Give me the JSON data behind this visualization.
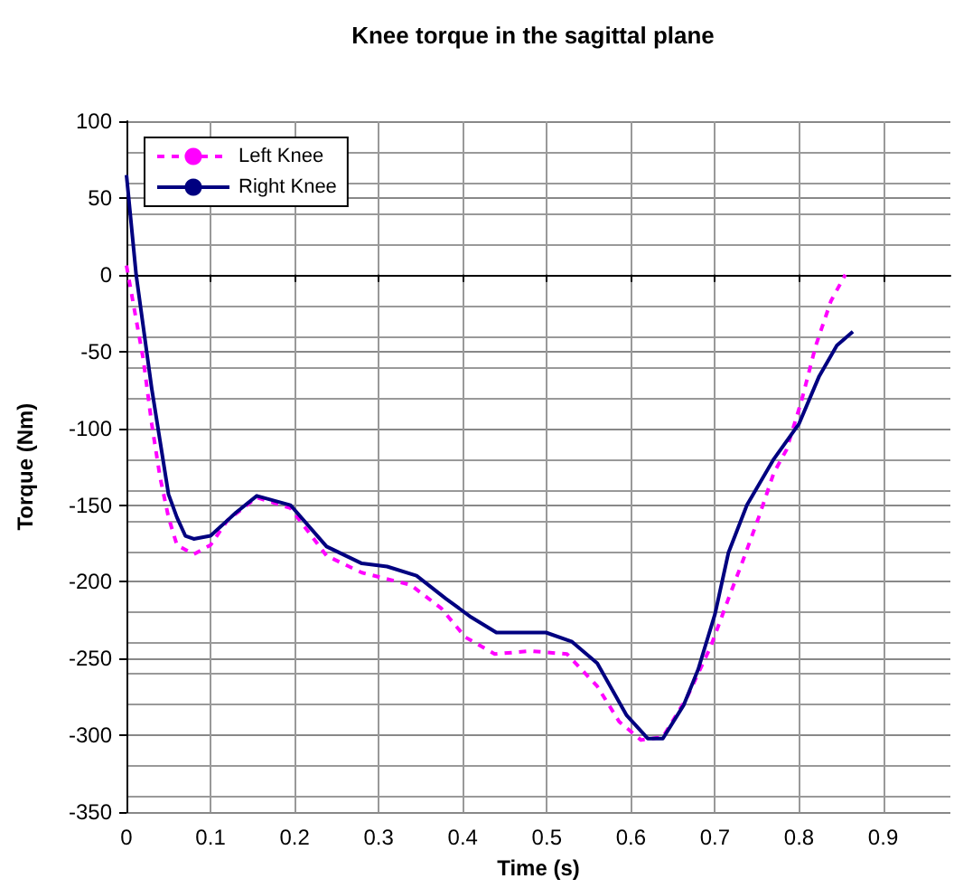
{
  "chart_data": {
    "type": "line",
    "title": "Knee torque in the sagittal plane",
    "xlabel": "Time (s)",
    "ylabel": "Torque (Nm)",
    "xlim": [
      0,
      0.98
    ],
    "xticks": [
      0,
      0.1,
      0.2,
      0.3,
      0.4,
      0.5,
      0.6,
      0.7,
      0.8,
      0.9
    ],
    "ylim": [
      -350,
      100
    ],
    "yticks": [
      -350,
      -300,
      -250,
      -200,
      -150,
      -100,
      -50,
      0,
      50,
      100
    ],
    "grid": true,
    "legend": "top left",
    "marker": "none",
    "series": [
      {
        "name": "Left Knee",
        "color": "#ff00ff",
        "line_style": "dashed",
        "x": [
          0,
          0.02,
          0.03,
          0.04,
          0.05,
          0.06,
          0.08,
          0.1,
          0.12,
          0.155,
          0.195,
          0.238,
          0.28,
          0.338,
          0.374,
          0.403,
          0.438,
          0.48,
          0.524,
          0.56,
          0.586,
          0.612,
          0.638,
          0.666,
          0.695,
          0.716,
          0.734,
          0.752,
          0.77,
          0.785,
          0.803,
          0.82,
          0.838,
          0.855
        ],
        "values": [
          6,
          -55,
          -97,
          -132,
          -158,
          -176,
          -182,
          -176,
          -160,
          -145,
          -152,
          -183,
          -194,
          -202,
          -217,
          -236,
          -247,
          -245,
          -247,
          -268,
          -291,
          -303,
          -301,
          -276,
          -242,
          -211,
          -185,
          -158,
          -129,
          -114,
          -82,
          -46,
          -17,
          0
        ]
      },
      {
        "name": "Right Knee",
        "color": "#000080",
        "line_style": "solid",
        "x": [
          0,
          0.0115,
          0.03,
          0.05,
          0.06,
          0.07,
          0.08,
          0.1,
          0.13,
          0.155,
          0.195,
          0.238,
          0.28,
          0.31,
          0.345,
          0.38,
          0.41,
          0.44,
          0.499,
          0.53,
          0.56,
          0.595,
          0.62,
          0.638,
          0.663,
          0.68,
          0.7,
          0.716,
          0.738,
          0.77,
          0.8,
          0.824,
          0.845,
          0.864
        ],
        "values": [
          65,
          0,
          -74,
          -143,
          -158,
          -170,
          -172,
          -170,
          -155,
          -144,
          -150,
          -177,
          -188,
          -190,
          -196,
          -211,
          -223,
          -233,
          -233,
          -239,
          -253,
          -287,
          -302,
          -302,
          -280,
          -257,
          -221,
          -181,
          -150,
          -120,
          -97,
          -66,
          -46,
          -37
        ]
      }
    ]
  }
}
